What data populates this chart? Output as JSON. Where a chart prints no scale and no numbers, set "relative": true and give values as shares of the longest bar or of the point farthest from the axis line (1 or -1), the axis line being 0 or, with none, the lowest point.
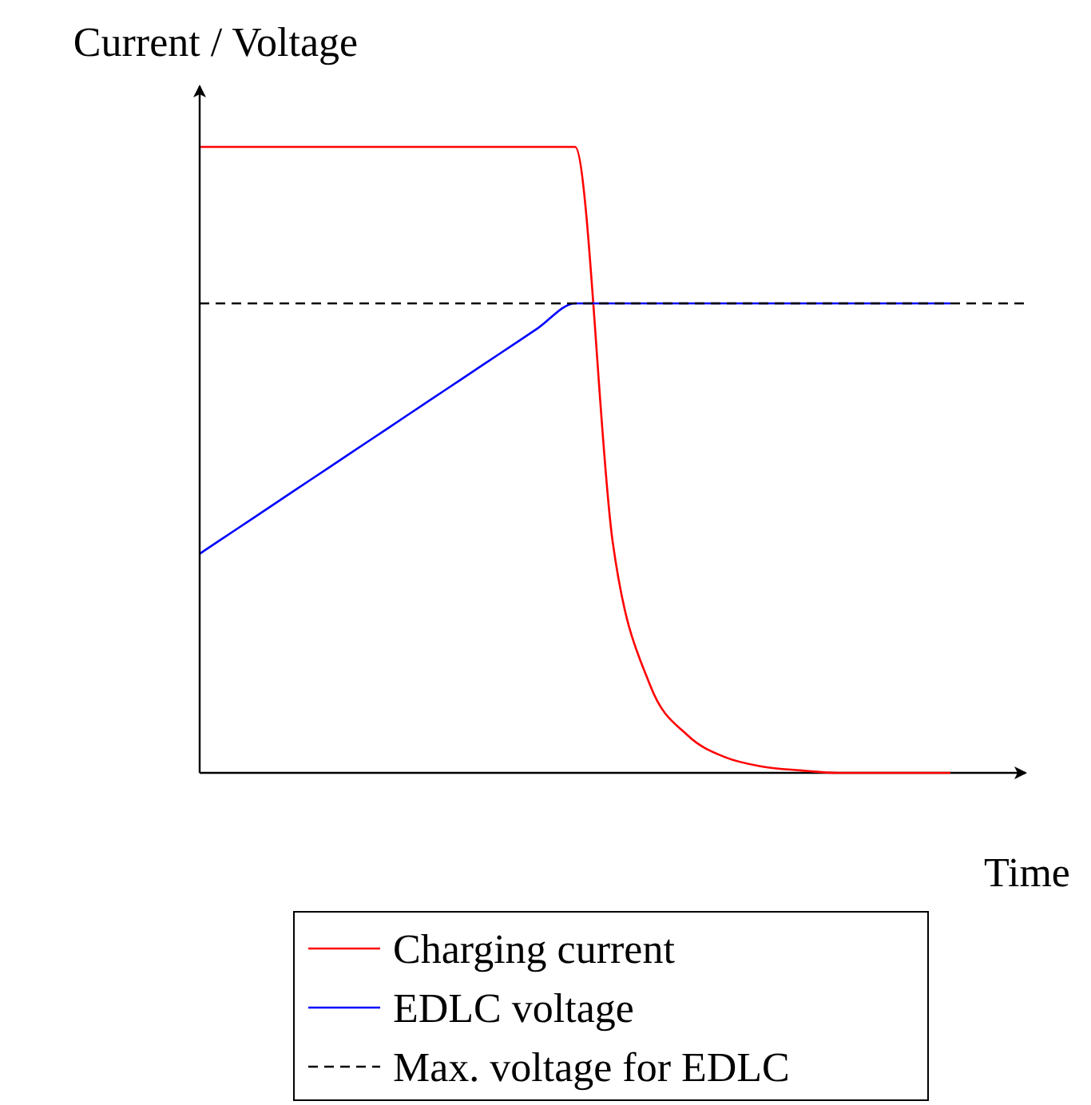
{
  "chart_data": {
    "type": "line",
    "relative": true,
    "xlabel": "Time",
    "ylabel": "Current / Voltage",
    "categories": [
      null,
      null,
      null,
      null,
      null,
      null,
      null,
      null,
      null,
      null,
      null,
      null,
      null,
      null,
      null,
      null,
      null,
      null,
      null,
      null,
      null,
      null,
      null
    ],
    "series": [
      {
        "name": "Charging current",
        "color": "#ff0000",
        "values": [
          1,
          1,
          1,
          1,
          1,
          1,
          1,
          1,
          1,
          1,
          1,
          0.37,
          0.14,
          0.06,
          0.025,
          0.01,
          0.004,
          0,
          0,
          0,
          0,
          null,
          null
        ]
      },
      {
        "name": "EDLC voltage",
        "color": "#0000ff",
        "values": [
          0.35,
          0.39,
          0.43,
          0.47,
          0.51,
          0.55,
          0.59,
          0.63,
          0.67,
          0.71,
          0.75,
          0.75,
          0.75,
          0.75,
          0.75,
          0.75,
          0.75,
          0.75,
          0.75,
          0.75,
          0.75,
          null,
          null
        ]
      },
      {
        "name": "Max. voltage for EDLC",
        "color": "#000000",
        "line_style": "dashed",
        "values": [
          0.75,
          0.75,
          0.75,
          0.75,
          0.75,
          0.75,
          0.75,
          0.75,
          0.75,
          0.75,
          0.75,
          0.75,
          0.75,
          0.75,
          0.75,
          0.75,
          0.75,
          0.75,
          0.75,
          0.75,
          0.75,
          0.75,
          0.75
        ]
      }
    ],
    "legend": "bottom",
    "marker": "none"
  }
}
